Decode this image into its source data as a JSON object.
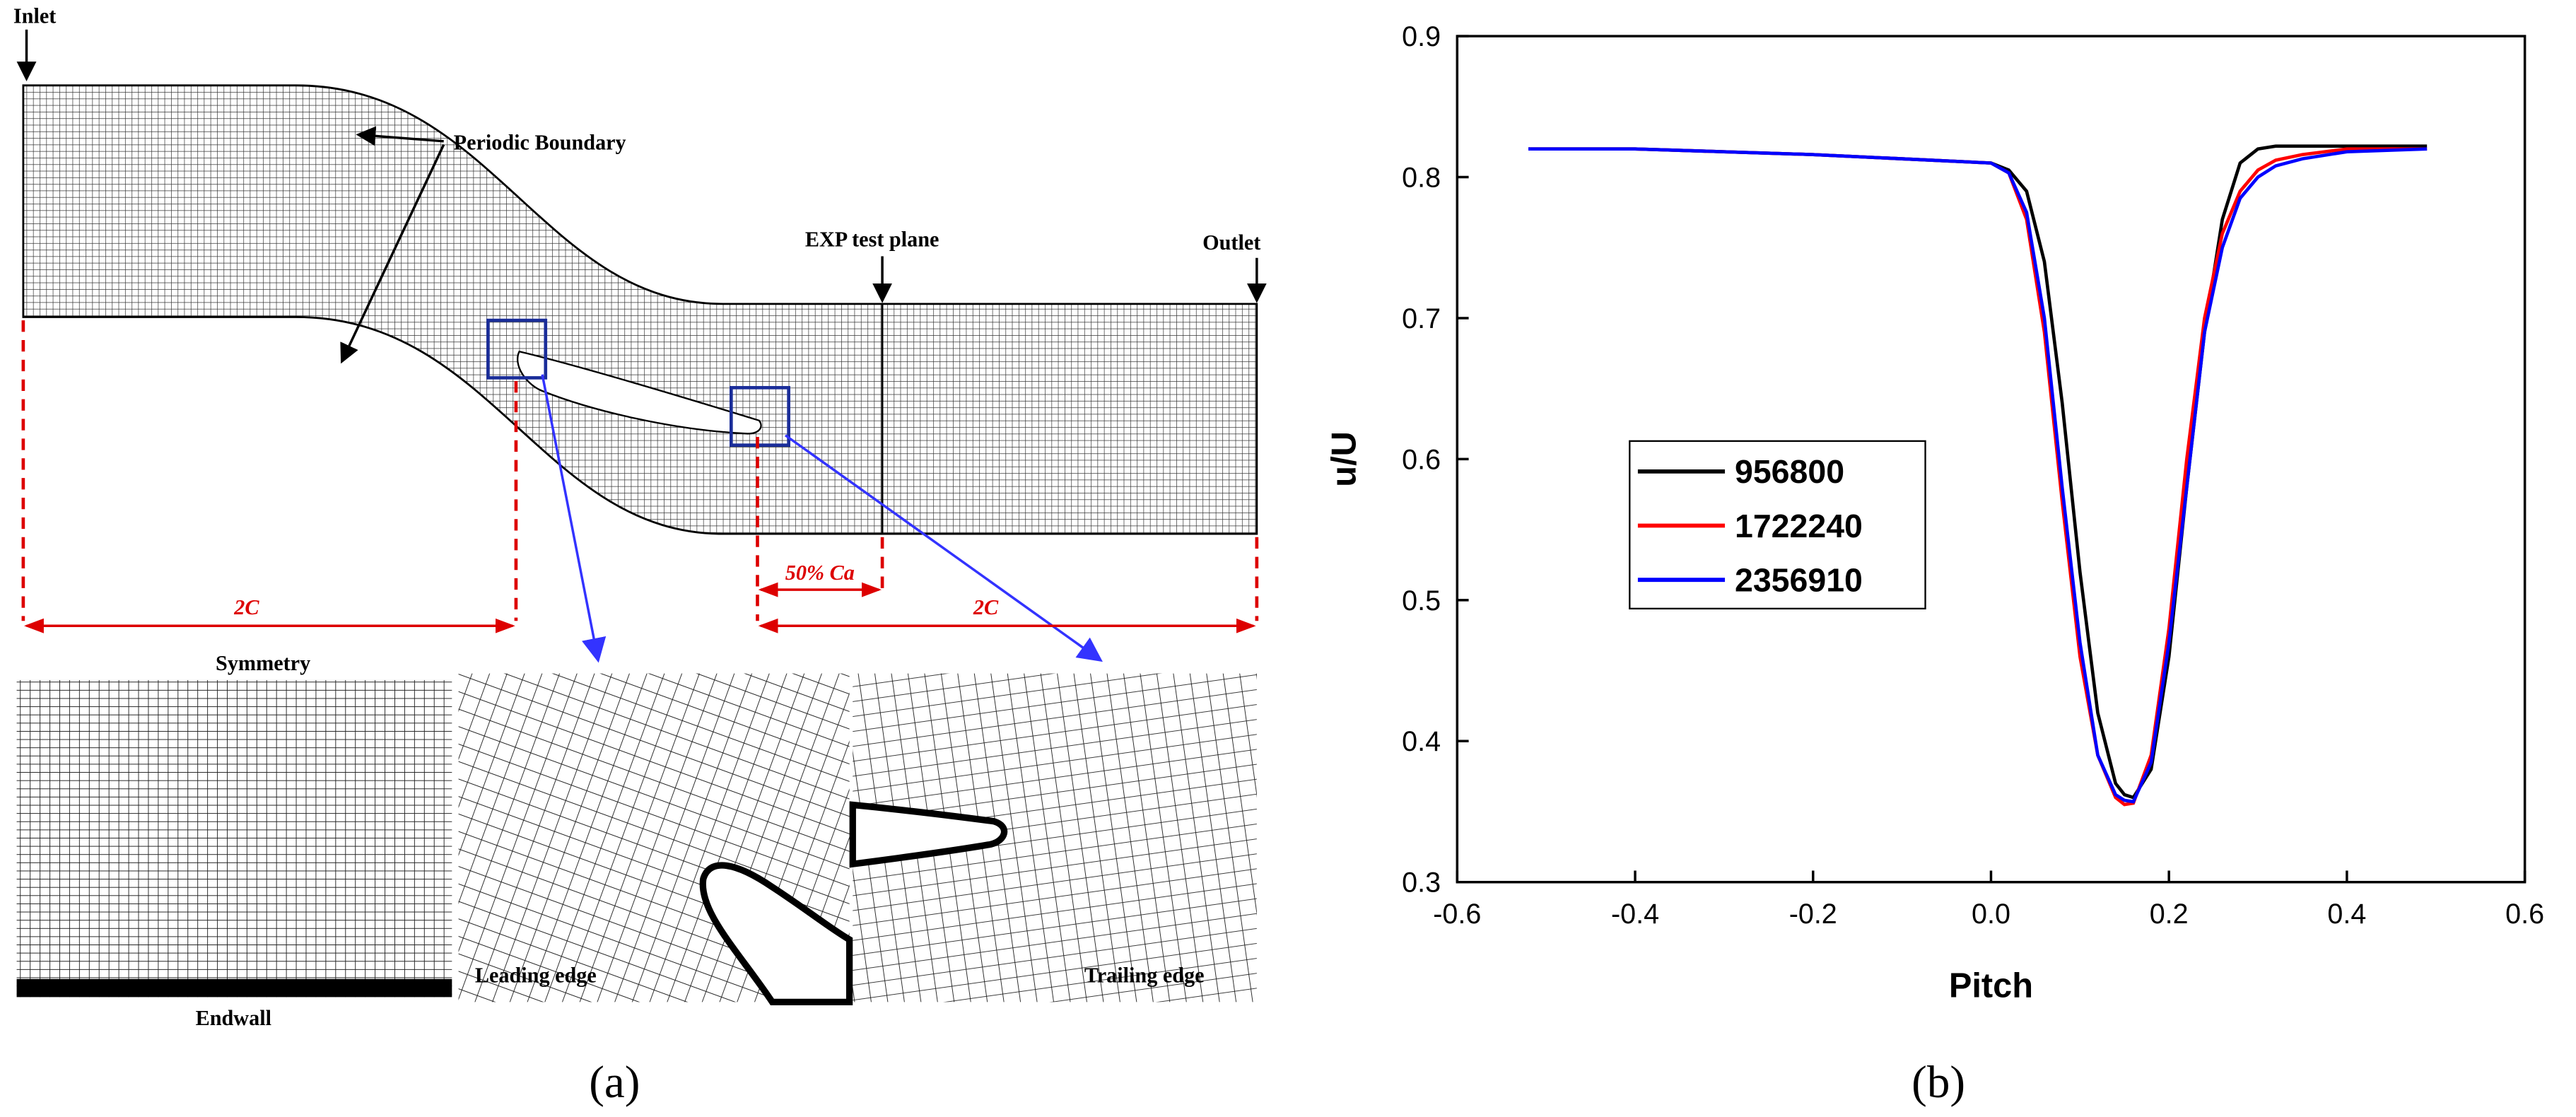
{
  "diagram": {
    "inlet": "Inlet",
    "periodic": "Periodic Boundary",
    "exp_plane": "EXP test plane",
    "outlet": "Outlet",
    "dim_left": "2C",
    "dim_mid": "50% Ca",
    "dim_right": "2C",
    "symmetry": "Symmetry",
    "endwall": "Endwall",
    "leading": "Leading edge",
    "trailing": "Trailing edge"
  },
  "panels": [
    "(a)",
    "(b)"
  ],
  "chart_data": {
    "type": "line",
    "xlabel": "Pitch",
    "ylabel": "u/U",
    "x": [
      -0.52,
      -0.4,
      -0.3,
      -0.2,
      -0.1,
      0,
      0.02,
      0.04,
      0.06,
      0.08,
      0.1,
      0.12,
      0.14,
      0.15,
      0.16,
      0.18,
      0.2,
      0.22,
      0.24,
      0.26,
      0.28,
      0.3,
      0.32,
      0.35,
      0.4,
      0.49
    ],
    "series": [
      {
        "name": "956800",
        "color": "#000000",
        "values": [
          0.82,
          0.82,
          0.818,
          0.816,
          0.813,
          0.81,
          0.805,
          0.79,
          0.74,
          0.64,
          0.52,
          0.42,
          0.37,
          0.362,
          0.36,
          0.38,
          0.46,
          0.58,
          0.69,
          0.77,
          0.81,
          0.82,
          0.822,
          0.822,
          0.822,
          0.822
        ]
      },
      {
        "name": "1722240",
        "color": "#ff0000",
        "values": [
          0.82,
          0.82,
          0.818,
          0.816,
          0.813,
          0.81,
          0.803,
          0.77,
          0.69,
          0.57,
          0.46,
          0.39,
          0.36,
          0.355,
          0.356,
          0.39,
          0.48,
          0.6,
          0.7,
          0.76,
          0.79,
          0.805,
          0.812,
          0.816,
          0.82,
          0.82
        ]
      },
      {
        "name": "2356910",
        "color": "#0000ff",
        "values": [
          0.82,
          0.82,
          0.818,
          0.816,
          0.813,
          0.81,
          0.803,
          0.775,
          0.7,
          0.58,
          0.47,
          0.39,
          0.362,
          0.358,
          0.357,
          0.385,
          0.47,
          0.58,
          0.69,
          0.75,
          0.785,
          0.8,
          0.808,
          0.813,
          0.818,
          0.82
        ]
      }
    ],
    "xlim": [
      -0.6,
      0.6
    ],
    "xticks": [
      -0.6,
      -0.4,
      -0.2,
      {
        "value": 0,
        "label": "0.0"
      },
      0.2,
      0.4,
      0.6
    ],
    "ylim": [
      0.3,
      0.9
    ],
    "yticks": [
      0.3,
      0.4,
      0.5,
      0.6,
      0.7,
      0.8,
      0.9
    ],
    "legend": "center left"
  }
}
